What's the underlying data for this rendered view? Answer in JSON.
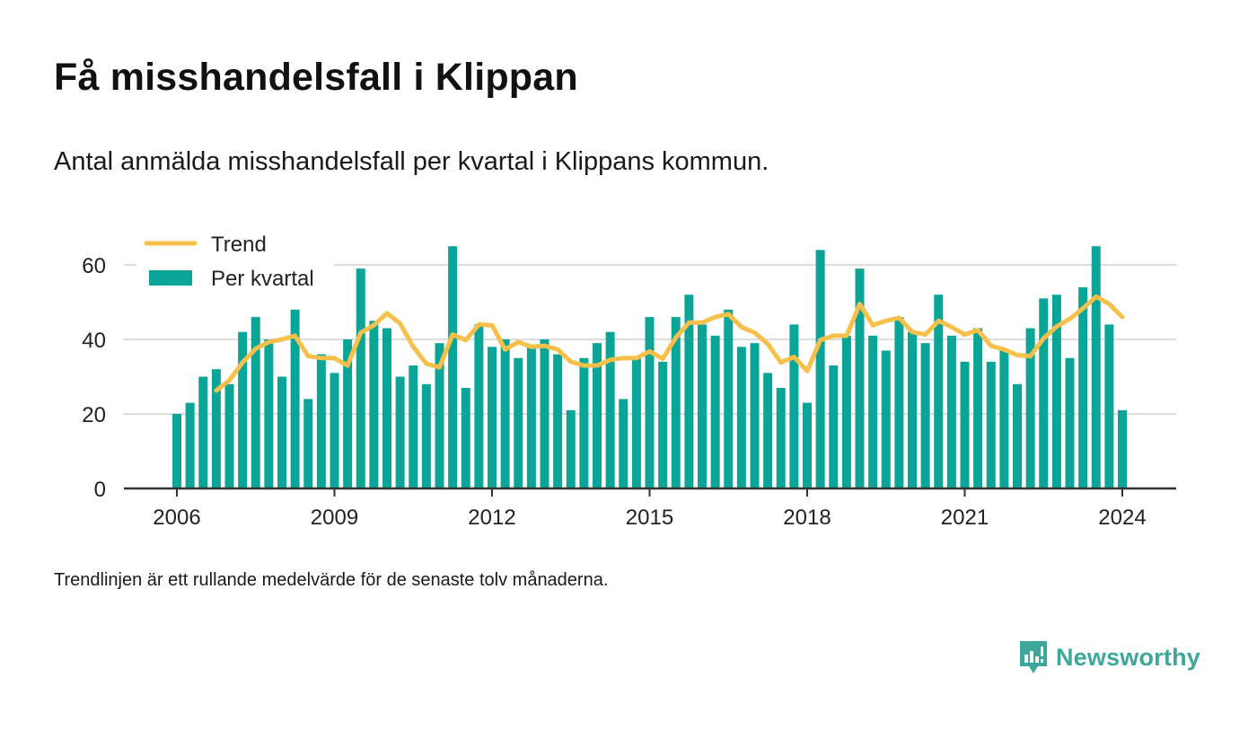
{
  "header": {
    "title": "Få misshandelsfall i Klippan",
    "subtitle": "Antal anmälda misshandelsfall per kvartal i Klippans kommun."
  },
  "footer": {
    "note": "Trendlinjen är ett rullande medelvärde för de senaste tolv månaderna.",
    "brand": "Newsworthy"
  },
  "icons": {
    "brand_logo": "newsworthy-logo-icon"
  },
  "colors": {
    "bar": "#0aa596",
    "trend": "#f7c04a",
    "brand": "#3ea79b",
    "grid": "#dddddd",
    "axis": "#333333"
  },
  "chart_data": {
    "type": "bar",
    "legend": {
      "placement": "top-left",
      "entries": [
        "Trend",
        "Per kvartal"
      ]
    },
    "xlim": [
      2005.6,
      2025.0
    ],
    "ylim": [
      0,
      70
    ],
    "x_ticks": [
      2006,
      2009,
      2012,
      2015,
      2018,
      2021,
      2024
    ],
    "y_ticks": [
      0,
      20,
      40,
      60
    ],
    "grid": true,
    "series": [
      {
        "name": "Per kvartal",
        "type": "bar",
        "x": [
          2006.0,
          2006.25,
          2006.5,
          2006.75,
          2007.0,
          2007.25,
          2007.5,
          2007.75,
          2008.0,
          2008.25,
          2008.5,
          2008.75,
          2009.0,
          2009.25,
          2009.5,
          2009.75,
          2010.0,
          2010.25,
          2010.5,
          2010.75,
          2011.0,
          2011.25,
          2011.5,
          2011.75,
          2012.0,
          2012.25,
          2012.5,
          2012.75,
          2013.0,
          2013.25,
          2013.5,
          2013.75,
          2014.0,
          2014.25,
          2014.5,
          2014.75,
          2015.0,
          2015.25,
          2015.5,
          2015.75,
          2016.0,
          2016.25,
          2016.5,
          2016.75,
          2017.0,
          2017.25,
          2017.5,
          2017.75,
          2018.0,
          2018.25,
          2018.5,
          2018.75,
          2019.0,
          2019.25,
          2019.5,
          2019.75,
          2020.0,
          2020.25,
          2020.5,
          2020.75,
          2021.0,
          2021.25,
          2021.5,
          2021.75,
          2022.0,
          2022.25,
          2022.5,
          2022.75,
          2023.0,
          2023.25,
          2023.5,
          2023.75,
          2024.0
        ],
        "values": [
          20,
          23,
          30,
          32,
          28,
          42,
          46,
          40,
          30,
          48,
          24,
          36,
          31,
          40,
          59,
          45,
          43,
          30,
          33,
          28,
          39,
          65,
          27,
          44,
          38,
          40,
          35,
          38,
          40,
          36,
          21,
          35,
          39,
          42,
          24,
          35,
          46,
          34,
          46,
          52,
          44,
          41,
          48,
          38,
          39,
          31,
          27,
          44,
          23,
          64,
          33,
          41,
          59,
          41,
          37,
          46,
          42,
          39,
          52,
          41,
          34,
          43,
          34,
          37,
          28,
          43,
          51,
          52,
          35,
          54,
          65,
          44,
          21
        ]
      },
      {
        "name": "Trend",
        "type": "line",
        "x": [
          2006.75,
          2007.0,
          2007.25,
          2007.5,
          2007.75,
          2008.0,
          2008.25,
          2008.5,
          2008.75,
          2009.0,
          2009.25,
          2009.5,
          2009.75,
          2010.0,
          2010.25,
          2010.5,
          2010.75,
          2011.0,
          2011.25,
          2011.5,
          2011.75,
          2012.0,
          2012.25,
          2012.5,
          2012.75,
          2013.0,
          2013.25,
          2013.5,
          2013.75,
          2014.0,
          2014.25,
          2014.5,
          2014.75,
          2015.0,
          2015.25,
          2015.5,
          2015.75,
          2016.0,
          2016.25,
          2016.5,
          2016.75,
          2017.0,
          2017.25,
          2017.5,
          2017.75,
          2018.0,
          2018.25,
          2018.5,
          2018.75,
          2019.0,
          2019.25,
          2019.5,
          2019.75,
          2020.0,
          2020.25,
          2020.5,
          2020.75,
          2021.0,
          2021.25,
          2021.5,
          2021.75,
          2022.0,
          2022.25,
          2022.5,
          2022.75,
          2023.0,
          2023.25,
          2023.5,
          2023.75,
          2024.0
        ],
        "values": [
          26.3,
          29.0,
          33.8,
          37.5,
          39.3,
          40.0,
          41.0,
          35.5,
          35.0,
          35.0,
          33.0,
          41.8,
          43.8,
          47.0,
          44.3,
          38.0,
          33.5,
          32.5,
          41.3,
          39.8,
          44.0,
          43.8,
          37.3,
          39.3,
          38.0,
          38.3,
          37.3,
          34.0,
          33.0,
          33.0,
          34.5,
          35.0,
          35.0,
          36.8,
          34.8,
          40.5,
          44.5,
          44.5,
          46.0,
          46.8,
          43.3,
          41.8,
          38.8,
          33.8,
          35.3,
          31.5,
          39.8,
          41.0,
          41.0,
          49.5,
          43.8,
          45.0,
          45.8,
          42.0,
          41.3,
          45.0,
          43.3,
          41.3,
          42.5,
          38.3,
          37.3,
          35.8,
          35.5,
          40.3,
          43.5,
          45.5,
          48.3,
          51.5,
          49.5,
          46.0
        ]
      }
    ]
  }
}
